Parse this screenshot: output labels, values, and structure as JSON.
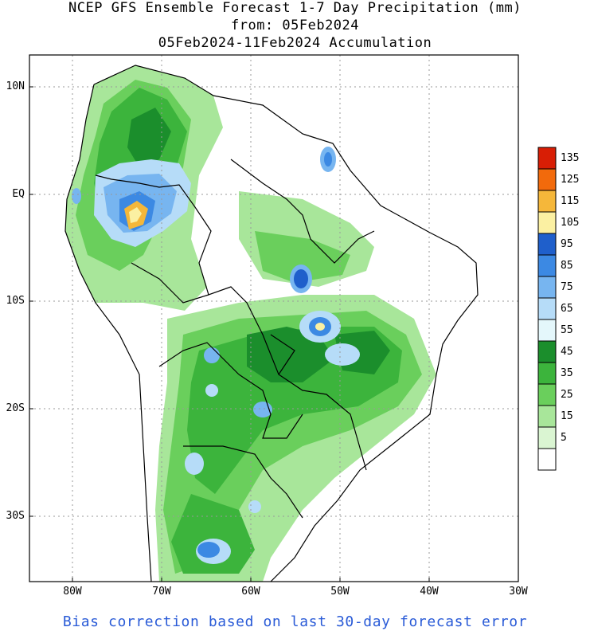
{
  "title": {
    "line1": "NCEP GFS Ensemble Forecast 1-7 Day Precipitation (mm)",
    "line2": "from: 05Feb2024",
    "line3": "05Feb2024-11Feb2024 Accumulation"
  },
  "axes": {
    "lat_labels": [
      "10N",
      "EQ",
      "10S",
      "20S",
      "30S"
    ],
    "lon_labels": [
      "80W",
      "70W",
      "60W",
      "50W",
      "40W",
      "30W"
    ]
  },
  "colorbar": {
    "labels": [
      "135",
      "125",
      "115",
      "105",
      "95",
      "85",
      "75",
      "65",
      "55",
      "45",
      "35",
      "25",
      "15",
      "5"
    ],
    "colors": [
      "#d81e05",
      "#f26a0c",
      "#f5b73a",
      "#fbf0a2",
      "#1f5fcb",
      "#3c89e3",
      "#77b5f0",
      "#b6dcf8",
      "#e4f7fb",
      "#1b8e2c",
      "#3cb43c",
      "#6acf5c",
      "#a8e69a",
      "#daf5d2",
      "#ffffff"
    ]
  },
  "footer": "Bias correction based on last 30-day forecast error"
}
